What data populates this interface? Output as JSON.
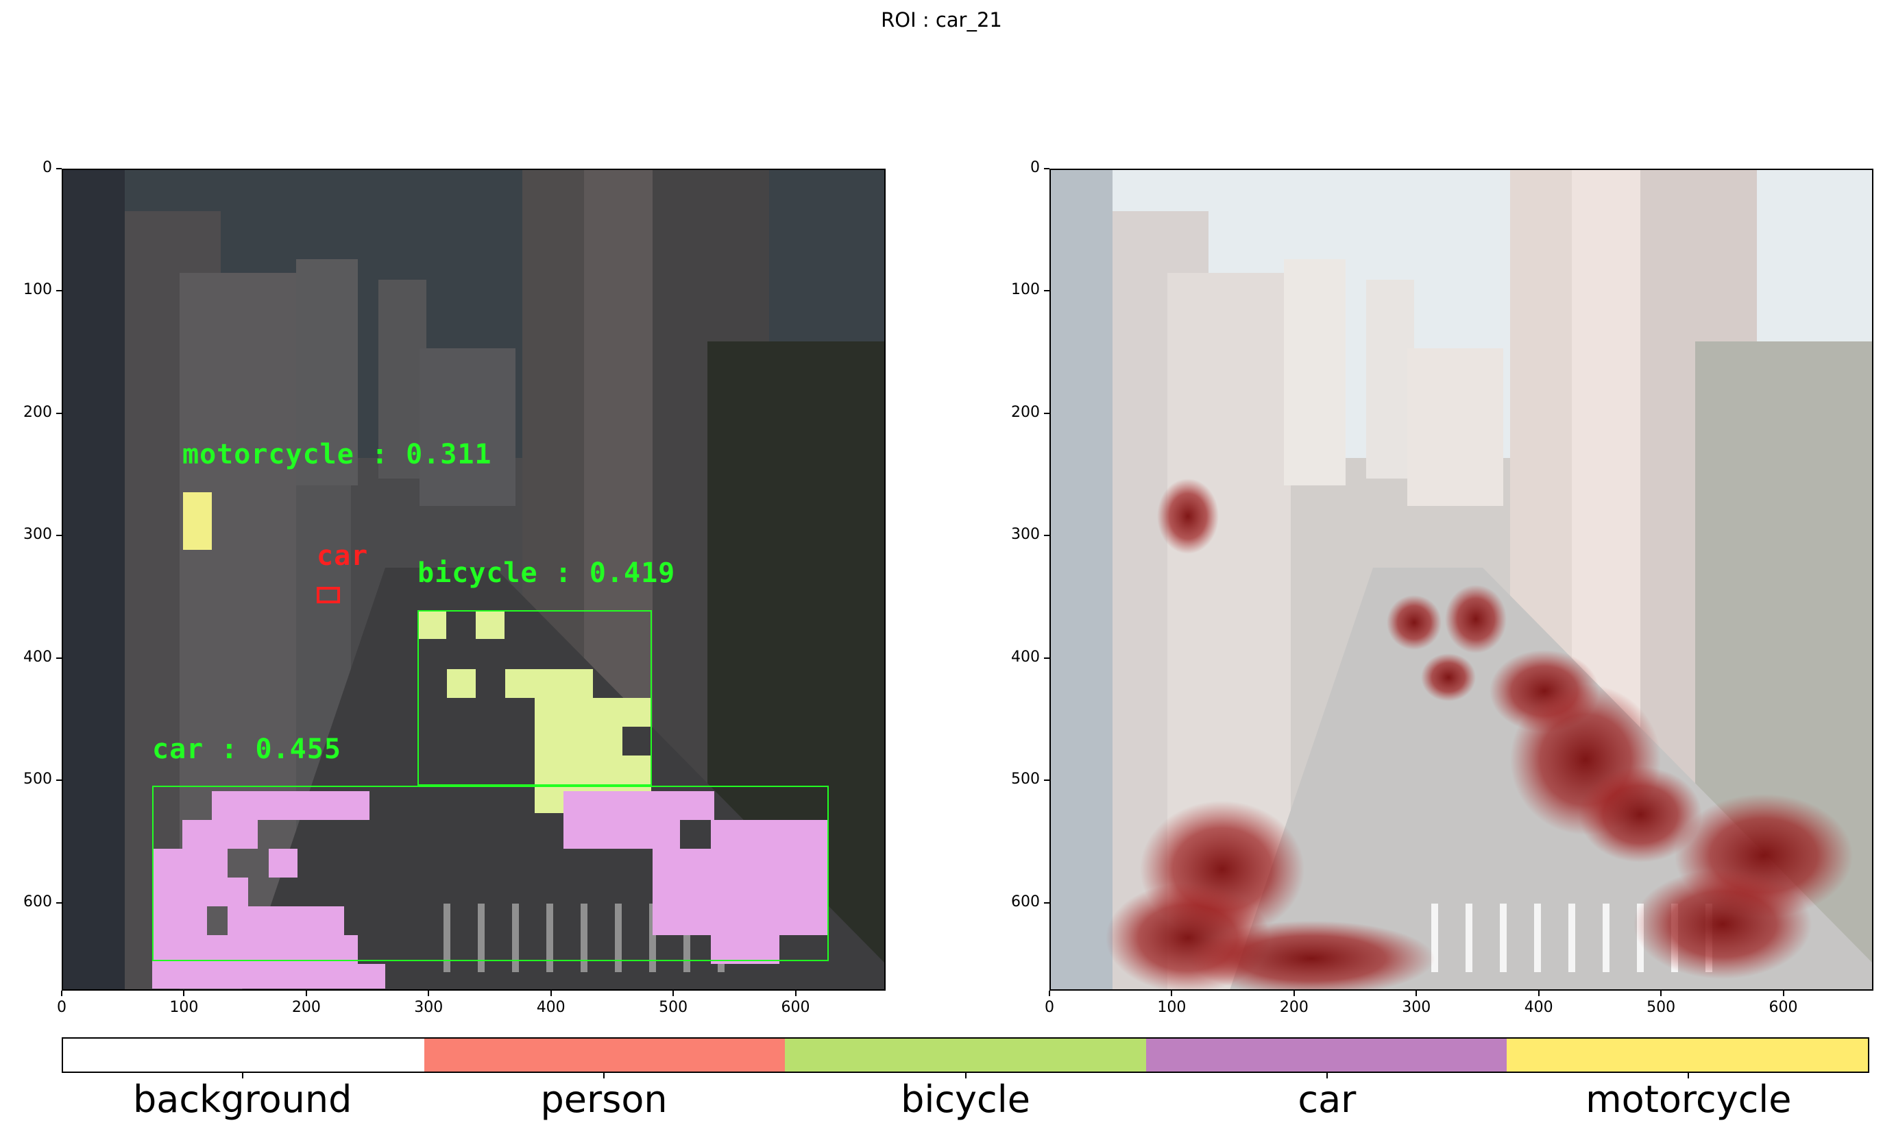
{
  "title": "ROI : car_21",
  "axes": {
    "y_ticks": [
      0,
      100,
      200,
      300,
      400,
      500,
      600
    ],
    "x_ticks": [
      0,
      100,
      200,
      300,
      400,
      500,
      600
    ],
    "x_range": [
      0,
      672
    ],
    "y_range": [
      0,
      672
    ]
  },
  "left_panel": {
    "detections": [
      {
        "label": "motorcycle : 0.311",
        "color": "#22ff22"
      },
      {
        "label": "car",
        "color": "#ff2020"
      },
      {
        "label": "bicycle : 0.419",
        "color": "#22ff22"
      },
      {
        "label": "car : 0.455",
        "color": "#22ff22"
      }
    ]
  },
  "legend": {
    "classes": [
      {
        "name": "background",
        "color": "#ffffff"
      },
      {
        "name": "person",
        "color": "#fa8072"
      },
      {
        "name": "bicycle",
        "color": "#b8e06e"
      },
      {
        "name": "car",
        "color": "#be80c0"
      },
      {
        "name": "motorcycle",
        "color": "#ffeb6e"
      }
    ]
  }
}
